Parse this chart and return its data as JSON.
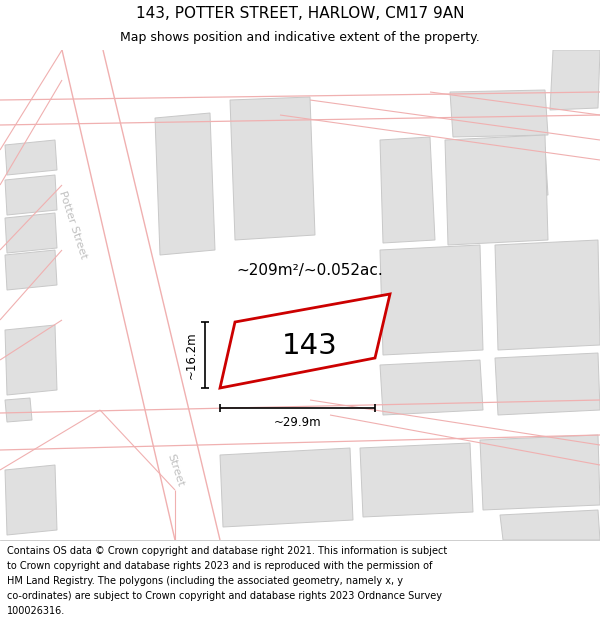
{
  "title": "143, POTTER STREET, HARLOW, CM17 9AN",
  "subtitle": "Map shows position and indicative extent of the property.",
  "area_label": "~209m²/~0.052ac.",
  "width_label": "~29.9m",
  "height_label": "~16.2m",
  "property_number": "143",
  "map_bg": "#ffffff",
  "road_line_color": "#f0b0b0",
  "building_color": "#e0e0e0",
  "building_border": "#c8c8c8",
  "property_outline_color": "#cc0000",
  "street_label_color": "#c0c0c0",
  "title_fontsize": 11,
  "subtitle_fontsize": 9,
  "footer_fontsize": 7,
  "footer_lines": [
    "Contains OS data © Crown copyright and database right 2021. This information is subject",
    "to Crown copyright and database rights 2023 and is reproduced with the permission of",
    "HM Land Registry. The polygons (including the associated geometry, namely x, y",
    "co-ordinates) are subject to Crown copyright and database rights 2023 Ordnance Survey",
    "100026316."
  ]
}
